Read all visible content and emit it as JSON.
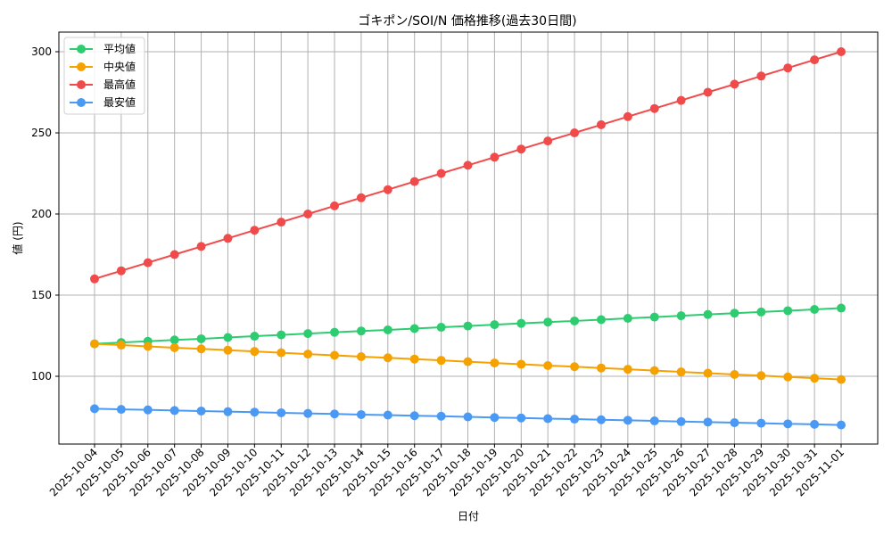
{
  "chart_data": {
    "type": "line",
    "title": "ゴキポン/SOI/N 価格推移(過去30日間)",
    "xlabel": "日付",
    "ylabel": "値 (円)",
    "ylim": [
      64,
      312
    ],
    "yticks": [
      100,
      150,
      200,
      250,
      300
    ],
    "grid": true,
    "legend_position": "upper left",
    "categories": [
      "2025-10-04",
      "2025-10-05",
      "2025-10-06",
      "2025-10-07",
      "2025-10-08",
      "2025-10-09",
      "2025-10-10",
      "2025-10-11",
      "2025-10-12",
      "2025-10-13",
      "2025-10-14",
      "2025-10-15",
      "2025-10-16",
      "2025-10-17",
      "2025-10-18",
      "2025-10-19",
      "2025-10-20",
      "2025-10-21",
      "2025-10-22",
      "2025-10-23",
      "2025-10-24",
      "2025-10-25",
      "2025-10-26",
      "2025-10-27",
      "2025-10-28",
      "2025-10-29",
      "2025-10-30",
      "2025-10-31",
      "2025-11-01"
    ],
    "series": [
      {
        "name": "平均値",
        "color": "#2ecc71",
        "values": [
          120,
          120.8,
          121.6,
          122.4,
          123.1,
          123.9,
          124.7,
          125.5,
          126.3,
          127.1,
          127.9,
          128.6,
          129.4,
          130.2,
          131,
          131.8,
          132.6,
          133.4,
          134.1,
          134.9,
          135.7,
          136.5,
          137.3,
          138.1,
          138.9,
          139.6,
          140.4,
          141.2,
          142
        ]
      },
      {
        "name": "中央値",
        "color": "#f5a200",
        "values": [
          120,
          119.2,
          118.4,
          117.6,
          116.9,
          116.1,
          115.3,
          114.5,
          113.7,
          112.9,
          112.1,
          111.4,
          110.6,
          109.8,
          109,
          108.2,
          107.4,
          106.6,
          105.9,
          105.1,
          104.3,
          103.5,
          102.7,
          101.9,
          101.1,
          100.4,
          99.6,
          98.8,
          98
        ]
      },
      {
        "name": "最高値",
        "color": "#f04a4a",
        "values": [
          160,
          165,
          170,
          175,
          180,
          185,
          190,
          195,
          200,
          205,
          210,
          215,
          220,
          225,
          230,
          235,
          240,
          245,
          250,
          255,
          260,
          265,
          270,
          275,
          280,
          285,
          290,
          295,
          300
        ]
      },
      {
        "name": "最安値",
        "color": "#4a9af5",
        "values": [
          80,
          79.6,
          79.3,
          78.9,
          78.6,
          78.2,
          77.9,
          77.5,
          77.1,
          76.8,
          76.4,
          76.1,
          75.7,
          75.4,
          75,
          74.6,
          74.3,
          73.9,
          73.6,
          73.2,
          72.9,
          72.5,
          72.1,
          71.8,
          71.4,
          71.1,
          70.7,
          70.4,
          70
        ]
      }
    ]
  }
}
